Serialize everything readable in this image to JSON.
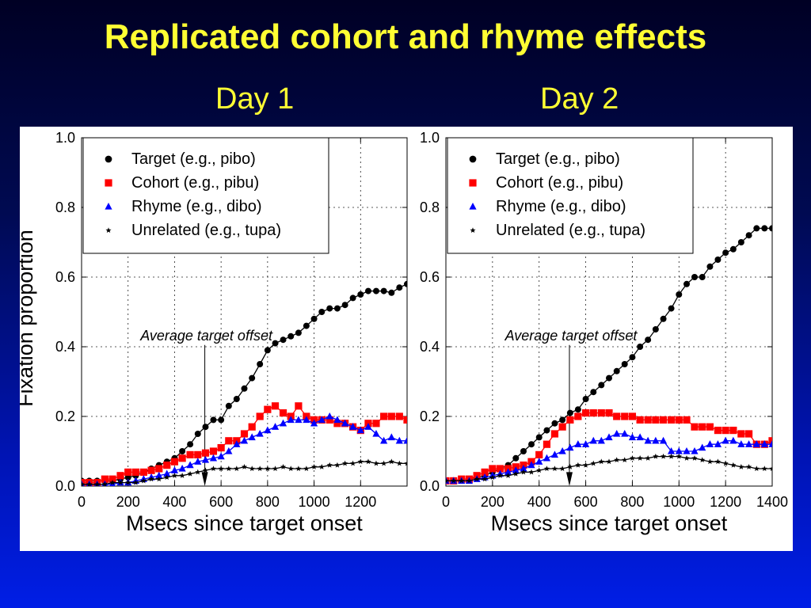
{
  "slide": {
    "title": "Replicated cohort and rhyme effects",
    "panel_labels": [
      "Day 1",
      "Day 2"
    ]
  },
  "colors": {
    "background_top": "#000024",
    "background_bottom": "#001ee6",
    "title": "#ffff33",
    "target": "#000000",
    "cohort": "#ff0000",
    "rhyme": "#0000ff",
    "unrelated": "#000000"
  },
  "chart_data": [
    {
      "type": "line",
      "panel": "Day 1",
      "xlabel": "Msecs since target onset",
      "ylabel": "Fixation proportion",
      "xlim": [
        0,
        1400
      ],
      "ylim": [
        0,
        1
      ],
      "x_ticks": [
        0,
        200,
        400,
        600,
        800,
        1000,
        1200
      ],
      "x_tick_labels": [
        "0",
        "200",
        "400",
        "600",
        "800",
        "1000",
        "1200"
      ],
      "y_ticks": [
        0,
        0.2,
        0.4,
        0.6,
        0.8,
        1.0
      ],
      "y_tick_labels": [
        "0.0",
        "0.2",
        "0.4",
        "0.6",
        "0.8",
        "1.0"
      ],
      "grid": true,
      "legend_position": "top-left",
      "annotation": {
        "text": "Average target offset",
        "x": 530
      },
      "x": [
        0,
        33,
        67,
        100,
        133,
        167,
        200,
        233,
        267,
        300,
        333,
        367,
        400,
        433,
        467,
        500,
        533,
        567,
        600,
        633,
        667,
        700,
        733,
        767,
        800,
        833,
        867,
        900,
        933,
        967,
        1000,
        1033,
        1067,
        1100,
        1133,
        1167,
        1200,
        1233,
        1267,
        1300,
        1333,
        1367,
        1400
      ],
      "series": [
        {
          "name": "Target (e.g., pibo)",
          "marker": "circle",
          "values": [
            0.015,
            0.015,
            0.015,
            0.015,
            0.015,
            0.02,
            0.025,
            0.03,
            0.04,
            0.05,
            0.06,
            0.07,
            0.08,
            0.1,
            0.12,
            0.15,
            0.17,
            0.19,
            0.19,
            0.23,
            0.25,
            0.28,
            0.31,
            0.35,
            0.39,
            0.41,
            0.42,
            0.43,
            0.44,
            0.46,
            0.48,
            0.5,
            0.51,
            0.51,
            0.52,
            0.54,
            0.55,
            0.56,
            0.56,
            0.56,
            0.555,
            0.57,
            0.58
          ]
        },
        {
          "name": "Cohort (e.g., pibu)",
          "marker": "square",
          "values": [
            0.01,
            0.01,
            0.01,
            0.02,
            0.02,
            0.03,
            0.04,
            0.04,
            0.04,
            0.045,
            0.05,
            0.06,
            0.07,
            0.08,
            0.09,
            0.09,
            0.095,
            0.1,
            0.11,
            0.13,
            0.13,
            0.15,
            0.17,
            0.2,
            0.22,
            0.23,
            0.21,
            0.2,
            0.23,
            0.2,
            0.19,
            0.19,
            0.19,
            0.18,
            0.18,
            0.17,
            0.16,
            0.18,
            0.18,
            0.2,
            0.2,
            0.2,
            0.19
          ]
        },
        {
          "name": "Rhyme (e.g., dibo)",
          "marker": "triangle",
          "values": [
            0.005,
            0.005,
            0.005,
            0.005,
            0.005,
            0.01,
            0.01,
            0.015,
            0.02,
            0.025,
            0.03,
            0.035,
            0.045,
            0.05,
            0.06,
            0.07,
            0.075,
            0.08,
            0.085,
            0.1,
            0.12,
            0.13,
            0.14,
            0.15,
            0.16,
            0.17,
            0.18,
            0.19,
            0.19,
            0.19,
            0.18,
            0.19,
            0.2,
            0.19,
            0.18,
            0.17,
            0.16,
            0.17,
            0.15,
            0.13,
            0.14,
            0.13,
            0.13
          ]
        },
        {
          "name": "Unrelated (e.g., tupa)",
          "marker": "star",
          "values": [
            0.005,
            0.005,
            0.005,
            0.005,
            0.01,
            0.01,
            0.01,
            0.01,
            0.015,
            0.02,
            0.02,
            0.025,
            0.03,
            0.03,
            0.035,
            0.04,
            0.045,
            0.05,
            0.05,
            0.05,
            0.05,
            0.055,
            0.05,
            0.05,
            0.05,
            0.05,
            0.055,
            0.05,
            0.05,
            0.05,
            0.055,
            0.055,
            0.06,
            0.06,
            0.065,
            0.065,
            0.07,
            0.07,
            0.065,
            0.065,
            0.07,
            0.065,
            0.065
          ]
        }
      ]
    },
    {
      "type": "line",
      "panel": "Day 2",
      "xlabel": "Msecs since target onset",
      "ylabel": "",
      "xlim": [
        0,
        1400
      ],
      "ylim": [
        0,
        1
      ],
      "x_ticks": [
        0,
        200,
        400,
        600,
        800,
        1000,
        1200,
        1400
      ],
      "x_tick_labels": [
        "0",
        "200",
        "400",
        "600",
        "800",
        "1000",
        "1200",
        "1400"
      ],
      "y_ticks": [
        0,
        0.2,
        0.4,
        0.6,
        0.8,
        1.0
      ],
      "y_tick_labels": [
        "0.0",
        "0.2",
        "0.4",
        "0.6",
        "0.8",
        "1.0"
      ],
      "grid": true,
      "legend_position": "top-left",
      "annotation": {
        "text": "Average target offset",
        "x": 530
      },
      "x": [
        0,
        33,
        67,
        100,
        133,
        167,
        200,
        233,
        267,
        300,
        333,
        367,
        400,
        433,
        467,
        500,
        533,
        567,
        600,
        633,
        667,
        700,
        733,
        767,
        800,
        833,
        867,
        900,
        933,
        967,
        1000,
        1033,
        1067,
        1100,
        1133,
        1167,
        1200,
        1233,
        1267,
        1300,
        1333,
        1367,
        1400
      ],
      "series": [
        {
          "name": "Target (e.g., pibo)",
          "marker": "circle",
          "values": [
            0.015,
            0.015,
            0.02,
            0.02,
            0.025,
            0.03,
            0.04,
            0.05,
            0.06,
            0.08,
            0.1,
            0.12,
            0.14,
            0.16,
            0.18,
            0.19,
            0.21,
            0.22,
            0.25,
            0.27,
            0.29,
            0.31,
            0.33,
            0.35,
            0.37,
            0.4,
            0.42,
            0.45,
            0.48,
            0.51,
            0.55,
            0.58,
            0.6,
            0.6,
            0.63,
            0.65,
            0.67,
            0.68,
            0.7,
            0.72,
            0.74,
            0.74,
            0.74
          ]
        },
        {
          "name": "Cohort (e.g., pibu)",
          "marker": "square",
          "values": [
            0.015,
            0.015,
            0.02,
            0.02,
            0.03,
            0.04,
            0.05,
            0.05,
            0.05,
            0.055,
            0.06,
            0.07,
            0.09,
            0.12,
            0.15,
            0.17,
            0.19,
            0.2,
            0.21,
            0.21,
            0.21,
            0.21,
            0.2,
            0.2,
            0.2,
            0.19,
            0.19,
            0.19,
            0.19,
            0.19,
            0.19,
            0.19,
            0.17,
            0.17,
            0.17,
            0.16,
            0.16,
            0.16,
            0.15,
            0.15,
            0.12,
            0.12,
            0.13
          ]
        },
        {
          "name": "Rhyme (e.g., dibo)",
          "marker": "triangle",
          "values": [
            0.015,
            0.015,
            0.015,
            0.015,
            0.02,
            0.025,
            0.03,
            0.035,
            0.04,
            0.045,
            0.05,
            0.06,
            0.07,
            0.08,
            0.09,
            0.1,
            0.11,
            0.12,
            0.12,
            0.13,
            0.13,
            0.14,
            0.15,
            0.15,
            0.14,
            0.14,
            0.13,
            0.13,
            0.13,
            0.1,
            0.1,
            0.1,
            0.1,
            0.11,
            0.12,
            0.12,
            0.13,
            0.13,
            0.12,
            0.12,
            0.12,
            0.12,
            0.12
          ]
        },
        {
          "name": "Unrelated (e.g., tupa)",
          "marker": "star",
          "values": [
            0.015,
            0.015,
            0.015,
            0.015,
            0.02,
            0.02,
            0.025,
            0.03,
            0.03,
            0.035,
            0.04,
            0.04,
            0.045,
            0.05,
            0.05,
            0.05,
            0.055,
            0.06,
            0.06,
            0.065,
            0.07,
            0.07,
            0.075,
            0.075,
            0.08,
            0.08,
            0.08,
            0.085,
            0.085,
            0.085,
            0.085,
            0.08,
            0.08,
            0.075,
            0.07,
            0.07,
            0.065,
            0.06,
            0.055,
            0.055,
            0.05,
            0.05,
            0.05
          ]
        }
      ]
    }
  ]
}
